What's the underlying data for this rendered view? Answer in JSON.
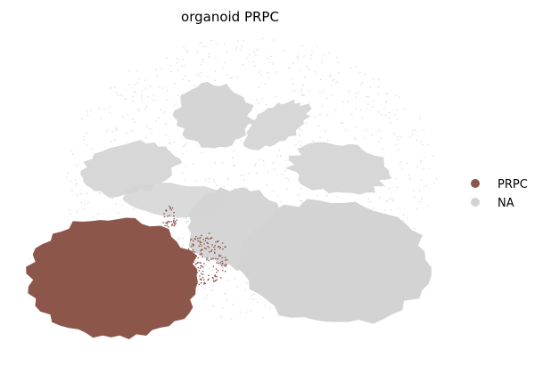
{
  "chart_data": {
    "type": "scatter",
    "title": "organoid PRPC",
    "xlabel": "",
    "ylabel": "",
    "grid": false,
    "axes_visible": false,
    "legend_placement": "right",
    "series": [
      {
        "name": "PRPC",
        "color": "#8c564b"
      },
      {
        "name": "NA",
        "color": "#d3d3d3"
      }
    ]
  }
}
